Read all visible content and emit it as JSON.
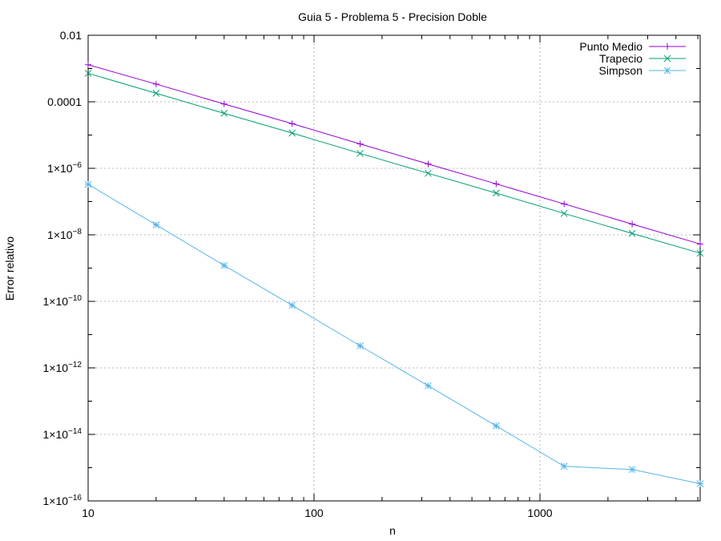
{
  "chart_data": {
    "type": "line",
    "title": "Guia 5 - Problema 5 - Precision Doble",
    "xlabel": "n",
    "ylabel": "Error relativo",
    "xscale": "log",
    "yscale": "log",
    "xlim": [
      10,
      5120
    ],
    "ylim": [
      1e-16,
      0.01
    ],
    "grid": true,
    "legend_position": "top-right",
    "x_ticks": [
      {
        "value": 10,
        "label": "10"
      },
      {
        "value": 100,
        "label": "100"
      },
      {
        "value": 1000,
        "label": "1000"
      }
    ],
    "y_ticks": [
      {
        "value": 0.01,
        "mant": "0.01",
        "exp": ""
      },
      {
        "value": 0.0001,
        "mant": "0.0001",
        "exp": ""
      },
      {
        "value": 1e-06,
        "mant": "1×10",
        "exp": "−6"
      },
      {
        "value": 1e-08,
        "mant": "1×10",
        "exp": "−8"
      },
      {
        "value": 1e-10,
        "mant": "1×10",
        "exp": "−10"
      },
      {
        "value": 1e-12,
        "mant": "1×10",
        "exp": "−12"
      },
      {
        "value": 1e-14,
        "mant": "1×10",
        "exp": "−14"
      },
      {
        "value": 1e-16,
        "mant": "1×10",
        "exp": "−16"
      }
    ],
    "x": [
      10,
      20,
      40,
      80,
      160,
      320,
      640,
      1280,
      2560,
      5120
    ],
    "series": [
      {
        "name": "Punto Medio",
        "color": "#9400d3",
        "marker": "plus",
        "values": [
          0.0013,
          0.00034,
          8.6e-05,
          2.2e-05,
          5.4e-06,
          1.35e-06,
          3.4e-07,
          8.5e-08,
          2.1e-08,
          5.3e-09
        ]
      },
      {
        "name": "Trapecio",
        "color": "#009e73",
        "marker": "cross",
        "values": [
          0.00072,
          0.00018,
          4.5e-05,
          1.15e-05,
          2.8e-06,
          7.1e-07,
          1.8e-07,
          4.4e-08,
          1.1e-08,
          2.8e-09
        ]
      },
      {
        "name": "Simpson",
        "color": "#56b4e9",
        "marker": "star",
        "values": [
          3.3e-07,
          2e-08,
          1.2e-09,
          7.6e-11,
          4.6e-12,
          2.9e-13,
          1.8e-14,
          1.1e-15,
          8.8e-16,
          3.3e-16
        ]
      }
    ]
  }
}
